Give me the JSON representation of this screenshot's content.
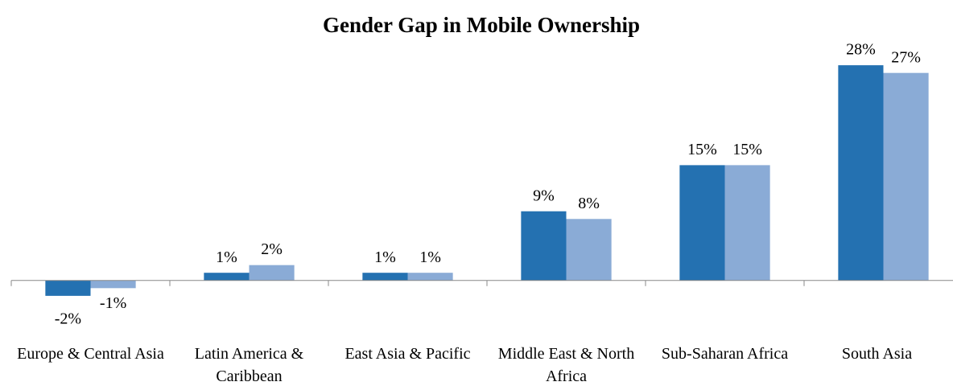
{
  "chart_data": {
    "type": "bar",
    "title": "Gender Gap in Mobile Ownership",
    "categories": [
      "Europe & Central Asia",
      "Latin America & Caribbean",
      "East Asia & Pacific",
      "Middle East & North Africa",
      "Sub-Saharan Africa",
      "South Asia"
    ],
    "series": [
      {
        "color": "#2471b1",
        "values": [
          -2,
          1,
          1,
          9,
          15,
          28
        ],
        "value_labels": [
          "-2%",
          "1%",
          "1%",
          "9%",
          "15%",
          "28%"
        ]
      },
      {
        "color": "#8aabd6",
        "values": [
          -1,
          2,
          1,
          8,
          15,
          27
        ],
        "value_labels": [
          "-1%",
          "2%",
          "1%",
          "8%",
          "15%",
          "27%"
        ]
      }
    ],
    "ylim": [
      -4,
      30
    ]
  }
}
